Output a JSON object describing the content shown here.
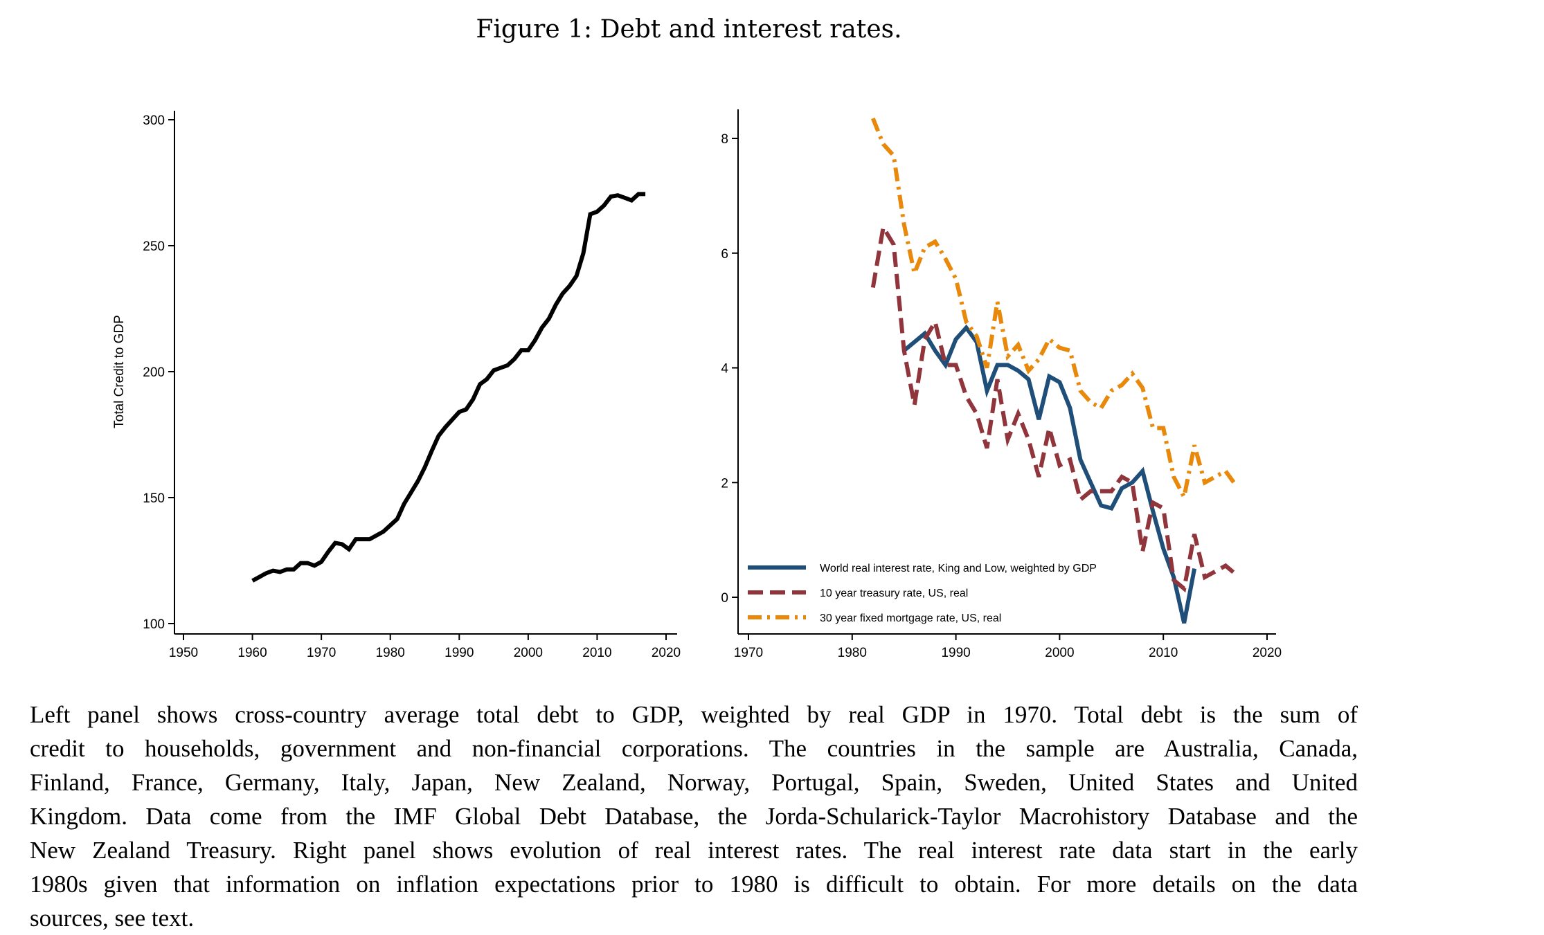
{
  "title": "Figure 1: Debt and interest rates.",
  "chart_data": [
    {
      "type": "line",
      "title": "",
      "xlabel": "",
      "ylabel": "Total Credit to GDP",
      "xlim": [
        1948,
        2021
      ],
      "ylim": [
        97,
        302
      ],
      "xticks": [
        1950,
        1960,
        1970,
        1980,
        1990,
        2000,
        2010,
        2020
      ],
      "yticks": [
        100,
        150,
        200,
        250,
        300
      ],
      "grid": false,
      "series": [
        {
          "name": "Total Credit to GDP",
          "color": "#000000",
          "x": [
            1960,
            1961,
            1962,
            1963,
            1964,
            1965,
            1966,
            1967,
            1968,
            1969,
            1970,
            1971,
            1972,
            1973,
            1974,
            1975,
            1976,
            1977,
            1978,
            1979,
            1980,
            1981,
            1982,
            1983,
            1984,
            1985,
            1986,
            1987,
            1988,
            1989,
            1990,
            1991,
            1992,
            1993,
            1994,
            1995,
            1996,
            1997,
            1998,
            1999,
            2000,
            2001,
            2002,
            2003,
            2004,
            2005,
            2006,
            2007,
            2008,
            2009,
            2010,
            2011,
            2012,
            2013,
            2014,
            2015,
            2016,
            2017
          ],
          "y": [
            117,
            118.5,
            120,
            121,
            120.5,
            121.5,
            121.5,
            124,
            124,
            123,
            124.5,
            128.5,
            132,
            131.5,
            129.5,
            133.5,
            133.5,
            133.5,
            135,
            136.5,
            139,
            141.5,
            147.5,
            152,
            156.5,
            162,
            168.5,
            174.5,
            178,
            181,
            184,
            185,
            189,
            195,
            197,
            200.5,
            201.5,
            202.5,
            205,
            208.5,
            208.5,
            212.5,
            217.5,
            221,
            226.5,
            231,
            234,
            238,
            247,
            262.5,
            263.5,
            266,
            269.5,
            270,
            269,
            268,
            270.5,
            270.5
          ]
        }
      ]
    },
    {
      "type": "line",
      "title": "",
      "xlabel": "",
      "ylabel": "",
      "xlim": [
        1969,
        2021
      ],
      "ylim": [
        -0.6,
        8.5
      ],
      "xticks": [
        1970,
        1980,
        1990,
        2000,
        2010,
        2020
      ],
      "yticks": [
        0,
        2,
        4,
        6,
        8
      ],
      "grid": false,
      "legend_placement": "bottom-left",
      "series": [
        {
          "name": "World real interest rate, King and Low, weighted by GDP",
          "color": "#1f4e79",
          "style": "solid",
          "x": [
            1985,
            1986,
            1987,
            1988,
            1989,
            1990,
            1991,
            1992,
            1993,
            1994,
            1995,
            1996,
            1997,
            1998,
            1999,
            2000,
            2001,
            2002,
            2003,
            2004,
            2005,
            2006,
            2007,
            2008,
            2009,
            2010,
            2011,
            2012,
            2013
          ],
          "y": [
            4.3,
            4.45,
            4.6,
            4.3,
            4.05,
            4.5,
            4.7,
            4.45,
            3.6,
            4.05,
            4.05,
            3.95,
            3.8,
            3.1,
            3.85,
            3.75,
            3.3,
            2.4,
            2.0,
            1.6,
            1.55,
            1.9,
            2.0,
            2.2,
            1.5,
            0.85,
            0.35,
            -0.45,
            0.5
          ]
        },
        {
          "name": "10 year treasury rate, US, real",
          "color": "#90353b",
          "style": "dash",
          "x": [
            1982,
            1983,
            1984,
            1985,
            1986,
            1987,
            1988,
            1989,
            1990,
            1991,
            1992,
            1993,
            1994,
            1995,
            1996,
            1997,
            1998,
            1999,
            2000,
            2001,
            2002,
            2003,
            2004,
            2005,
            2006,
            2007,
            2008,
            2009,
            2010,
            2011,
            2012,
            2013,
            2014,
            2015,
            2016,
            2017
          ],
          "y": [
            5.4,
            6.45,
            6.15,
            4.3,
            3.35,
            4.5,
            4.8,
            4.05,
            4.05,
            3.5,
            3.2,
            2.6,
            3.8,
            2.75,
            3.2,
            2.75,
            2.1,
            2.95,
            2.3,
            2.4,
            1.7,
            1.85,
            1.85,
            1.85,
            2.1,
            2.0,
            0.8,
            1.65,
            1.55,
            0.3,
            0.15,
            1.1,
            0.35,
            0.45,
            0.55,
            0.4
          ]
        },
        {
          "name": "30 year fixed mortgage rate, US, real",
          "color": "#e8890c",
          "style": "dashdot",
          "x": [
            1982,
            1983,
            1984,
            1985,
            1986,
            1987,
            1988,
            1989,
            1990,
            1991,
            1992,
            1993,
            1994,
            1995,
            1996,
            1997,
            1998,
            1999,
            2000,
            2001,
            2002,
            2003,
            2004,
            2005,
            2006,
            2007,
            2008,
            2009,
            2010,
            2011,
            2012,
            2013,
            2014,
            2015,
            2016,
            2017
          ],
          "y": [
            8.35,
            7.9,
            7.7,
            6.5,
            5.65,
            6.1,
            6.2,
            5.9,
            5.55,
            4.8,
            4.55,
            4.0,
            5.15,
            4.2,
            4.4,
            3.95,
            4.15,
            4.5,
            4.35,
            4.3,
            3.6,
            3.4,
            3.3,
            3.6,
            3.7,
            3.9,
            3.65,
            2.95,
            2.95,
            2.1,
            1.75,
            2.65,
            2.0,
            2.1,
            2.2,
            1.95
          ]
        }
      ]
    }
  ],
  "caption_lines": [
    "Left panel shows cross-country average total debt to GDP, weighted by real GDP in 1970.  Total debt is the sum of",
    "credit to households, government and non-financial corporations. The countries in the sample are Australia, Canada,",
    "Finland, France, Germany, Italy, Japan, New Zealand, Norway, Portugal, Spain, Sweden, United States and United",
    "Kingdom. Data come from the IMF Global Debt Database, the Jorda-Schularick-Taylor Macrohistory Database and the",
    "New Zealand Treasury. Right panel shows evolution of real interest rates. The real interest rate data start in the early",
    "1980s given that information on inflation expectations prior to 1980 is difficult to obtain. For more details on the data",
    "sources, see text."
  ]
}
